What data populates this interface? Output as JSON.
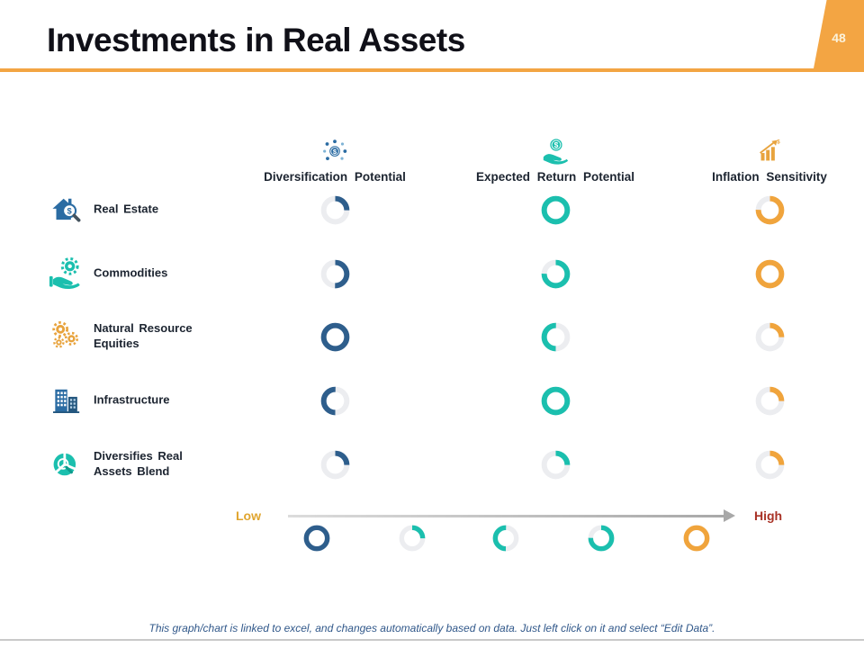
{
  "header": {
    "title": "Investments in Real Assets",
    "page_number": "48"
  },
  "columns": [
    {
      "label": "Diversification Potential",
      "icon": "diversification-icon"
    },
    {
      "label": "Expected Return Potential",
      "icon": "expected-return-icon"
    },
    {
      "label": "Inflation Sensitivity",
      "icon": "inflation-sensitivity-icon"
    }
  ],
  "rows": [
    {
      "label": "Real Estate",
      "icon": "real-estate-icon",
      "ratings": [
        {
          "percent": 25,
          "start": 0,
          "color": "blue"
        },
        {
          "percent": 100,
          "start": 0,
          "color": "teal"
        },
        {
          "percent": 75,
          "start": 0,
          "color": "orange"
        }
      ]
    },
    {
      "label": "Commodities",
      "icon": "commodities-icon",
      "ratings": [
        {
          "percent": 50,
          "start": 0,
          "color": "blue"
        },
        {
          "percent": 75,
          "start": 0,
          "color": "teal"
        },
        {
          "percent": 100,
          "start": 0,
          "color": "orange"
        }
      ]
    },
    {
      "label": "Natural Resource Equities",
      "icon": "natural-resource-icon",
      "ratings": [
        {
          "percent": 100,
          "start": 0,
          "color": "blue"
        },
        {
          "percent": 50,
          "start": 180,
          "color": "teal"
        },
        {
          "percent": 25,
          "start": 0,
          "color": "orange"
        }
      ]
    },
    {
      "label": "Infrastructure",
      "icon": "infrastructure-icon",
      "ratings": [
        {
          "percent": 50,
          "start": 180,
          "color": "blue"
        },
        {
          "percent": 100,
          "start": 0,
          "color": "teal"
        },
        {
          "percent": 25,
          "start": 0,
          "color": "orange"
        }
      ]
    },
    {
      "label": "Diversifies Real Assets Blend",
      "icon": "blend-icon",
      "ratings": [
        {
          "percent": 25,
          "start": 0,
          "color": "blue"
        },
        {
          "percent": 25,
          "start": 0,
          "color": "teal"
        },
        {
          "percent": 25,
          "start": 0,
          "color": "orange"
        }
      ]
    }
  ],
  "scale": {
    "low_label": "Low",
    "high_label": "High",
    "legend": [
      {
        "percent": 100,
        "start": 0,
        "color": "blue"
      },
      {
        "percent": 25,
        "start": 0,
        "color": "teal"
      },
      {
        "percent": 50,
        "start": 180,
        "color": "teal"
      },
      {
        "percent": 75,
        "start": 0,
        "color": "teal"
      },
      {
        "percent": 100,
        "start": 0,
        "color": "orange"
      }
    ]
  },
  "footer": {
    "note": "This graph/chart is linked to excel, and changes automatically based on data. Just left click on it and select “Edit Data”."
  },
  "colors": {
    "blue": "#2E5E8C",
    "teal": "#1BBFAE",
    "orange": "#F0A43C",
    "track": "#ECEDF0",
    "accent_orange": "#F3A543",
    "low_label": "#E0A52F",
    "high_label": "#A93226",
    "footer_text": "#31588A"
  },
  "chart_data": {
    "type": "table",
    "title": "Investments in Real Assets",
    "columns": [
      "Diversification Potential",
      "Expected Return Potential",
      "Inflation Sensitivity"
    ],
    "rows": [
      "Real Estate",
      "Commodities",
      "Natural Resource Equities",
      "Infrastructure",
      "Diversifies Real Assets Blend"
    ],
    "values_percent": [
      [
        25,
        100,
        75
      ],
      [
        50,
        75,
        100
      ],
      [
        100,
        50,
        25
      ],
      [
        50,
        100,
        25
      ],
      [
        25,
        25,
        25
      ]
    ],
    "scale": {
      "min_label": "Low",
      "max_label": "High",
      "legend_percent": [
        100,
        25,
        50,
        75,
        100
      ]
    },
    "legend_position": "bottom"
  }
}
